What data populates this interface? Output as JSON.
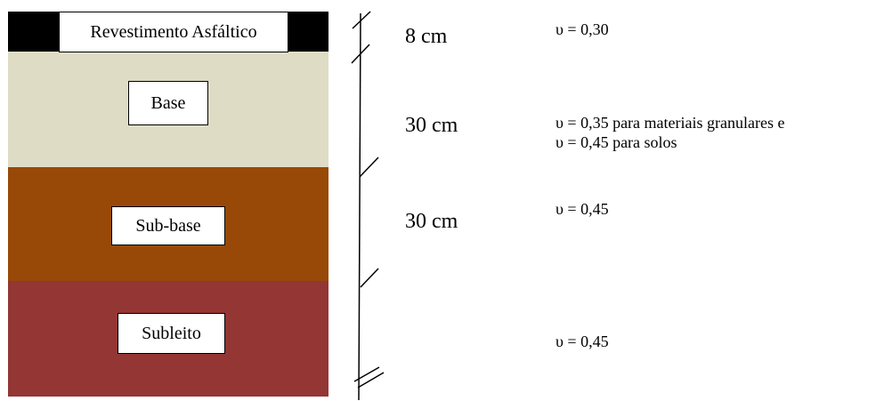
{
  "layers": [
    {
      "name": "Revestimento Asfáltico",
      "thickness": "8 cm",
      "poisson": [
        "υ = 0,30"
      ],
      "color": "#000000"
    },
    {
      "name": "Base",
      "thickness": "30 cm",
      "poisson": [
        "υ = 0,35 para materiais granulares e",
        "υ = 0,45 para solos"
      ],
      "color": "#dfdcc6"
    },
    {
      "name": "Sub-base",
      "thickness": "30 cm",
      "poisson": [
        "υ = 0,45"
      ],
      "color": "#984908"
    },
    {
      "name": "Subleito",
      "thickness": "",
      "poisson": [
        "υ = 0,45"
      ],
      "color": "#943634"
    }
  ]
}
